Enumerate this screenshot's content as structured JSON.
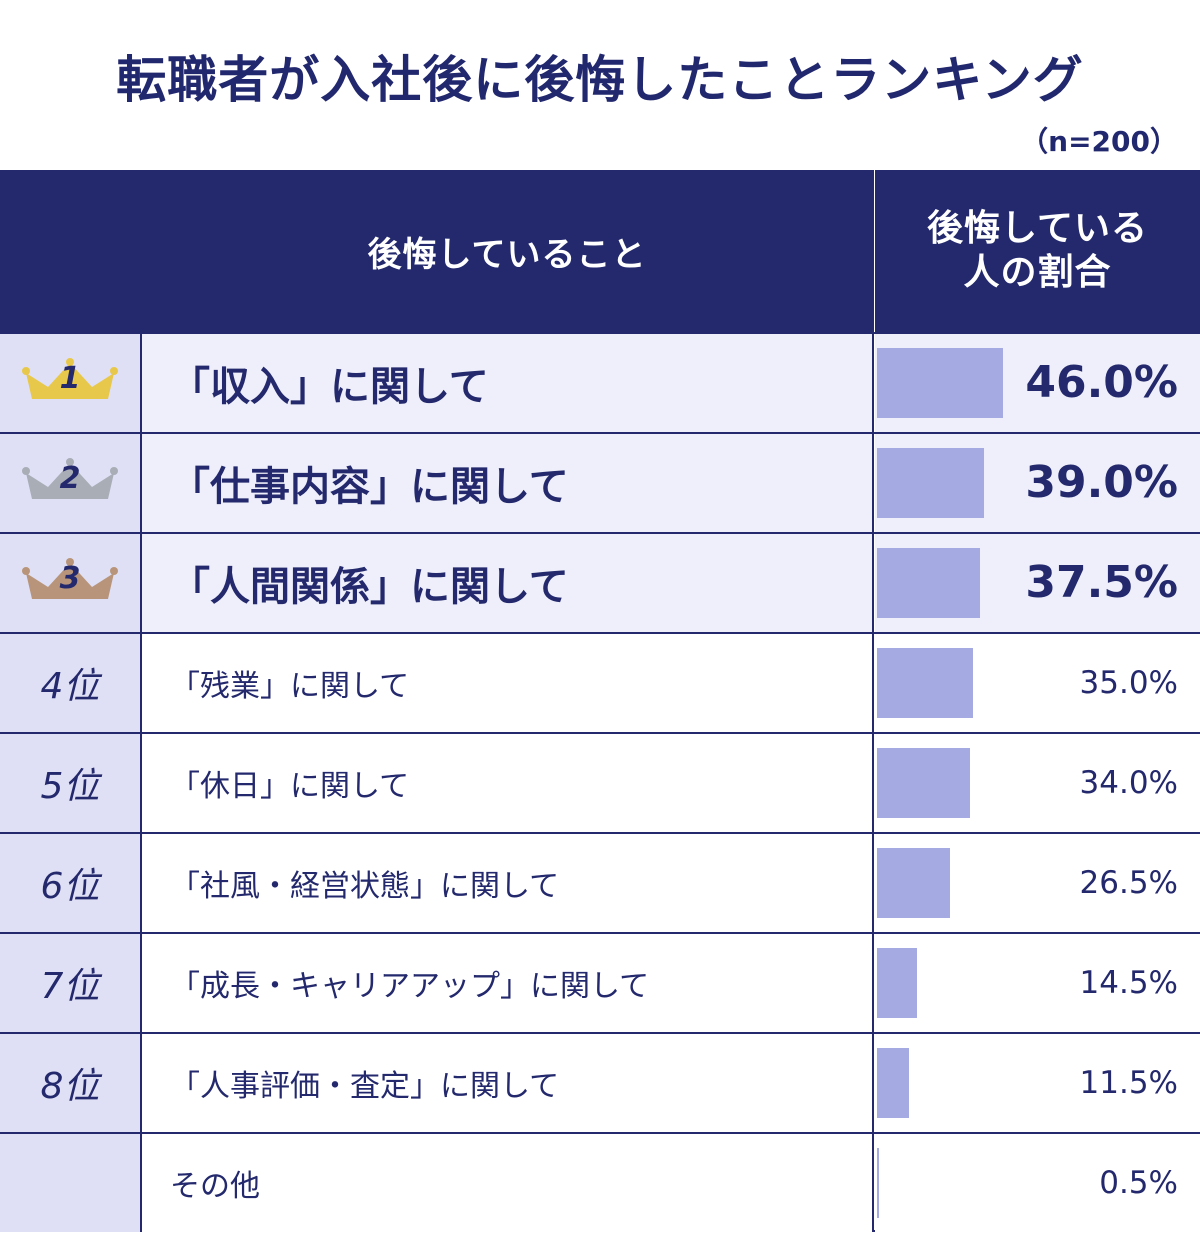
{
  "title": "転職者が入社後に後悔したことランキング",
  "sample": "（n=200）",
  "header": {
    "item": "後悔していること",
    "pct_line1": "後悔している",
    "pct_line2": "人の割合"
  },
  "colors": {
    "header_bg": "#23296c",
    "bar": "#a6aae3",
    "rank_bg": "#dfe0f5",
    "top_row_bg": "#eeeffa",
    "gold": "#e8c84a",
    "silver": "#a8adb6",
    "bronze": "#b8957a"
  },
  "rows": [
    {
      "rank": "1",
      "rank_icon": "gold-crown-icon",
      "item": "「収入」に関して",
      "pct": "46.0%"
    },
    {
      "rank": "2",
      "rank_icon": "silver-crown-icon",
      "item": "「仕事内容」に関して",
      "pct": "39.0%"
    },
    {
      "rank": "3",
      "rank_icon": "bronze-crown-icon",
      "item": "「人間関係」に関して",
      "pct": "37.5%"
    },
    {
      "rank": "4位",
      "item": "「残業」に関して",
      "pct": "35.0%"
    },
    {
      "rank": "5位",
      "item": "「休日」に関して",
      "pct": "34.0%"
    },
    {
      "rank": "6位",
      "item": "「社風・経営状態」に関して",
      "pct": "26.5%"
    },
    {
      "rank": "7位",
      "item": "「成長・キャリアアップ」に関して",
      "pct": "14.5%"
    },
    {
      "rank": "8位",
      "item": "「人事評価・査定」に関して",
      "pct": "11.5%"
    },
    {
      "rank": "",
      "item": "その他",
      "pct": "0.5%"
    }
  ],
  "chart_data": {
    "type": "bar",
    "title": "転職者が入社後に後悔したことランキング",
    "categories": [
      "「収入」に関して",
      "「仕事内容」に関して",
      "「人間関係」に関して",
      "「残業」に関して",
      "「休日」に関して",
      "「社風・経営状態」に関して",
      "「成長・キャリアアップ」に関して",
      "「人事評価・査定」に関して",
      "その他"
    ],
    "values": [
      46.0,
      39.0,
      37.5,
      35.0,
      34.0,
      26.5,
      14.5,
      11.5,
      0.5
    ],
    "unit": "%",
    "ylabel": "後悔している人の割合"
  }
}
